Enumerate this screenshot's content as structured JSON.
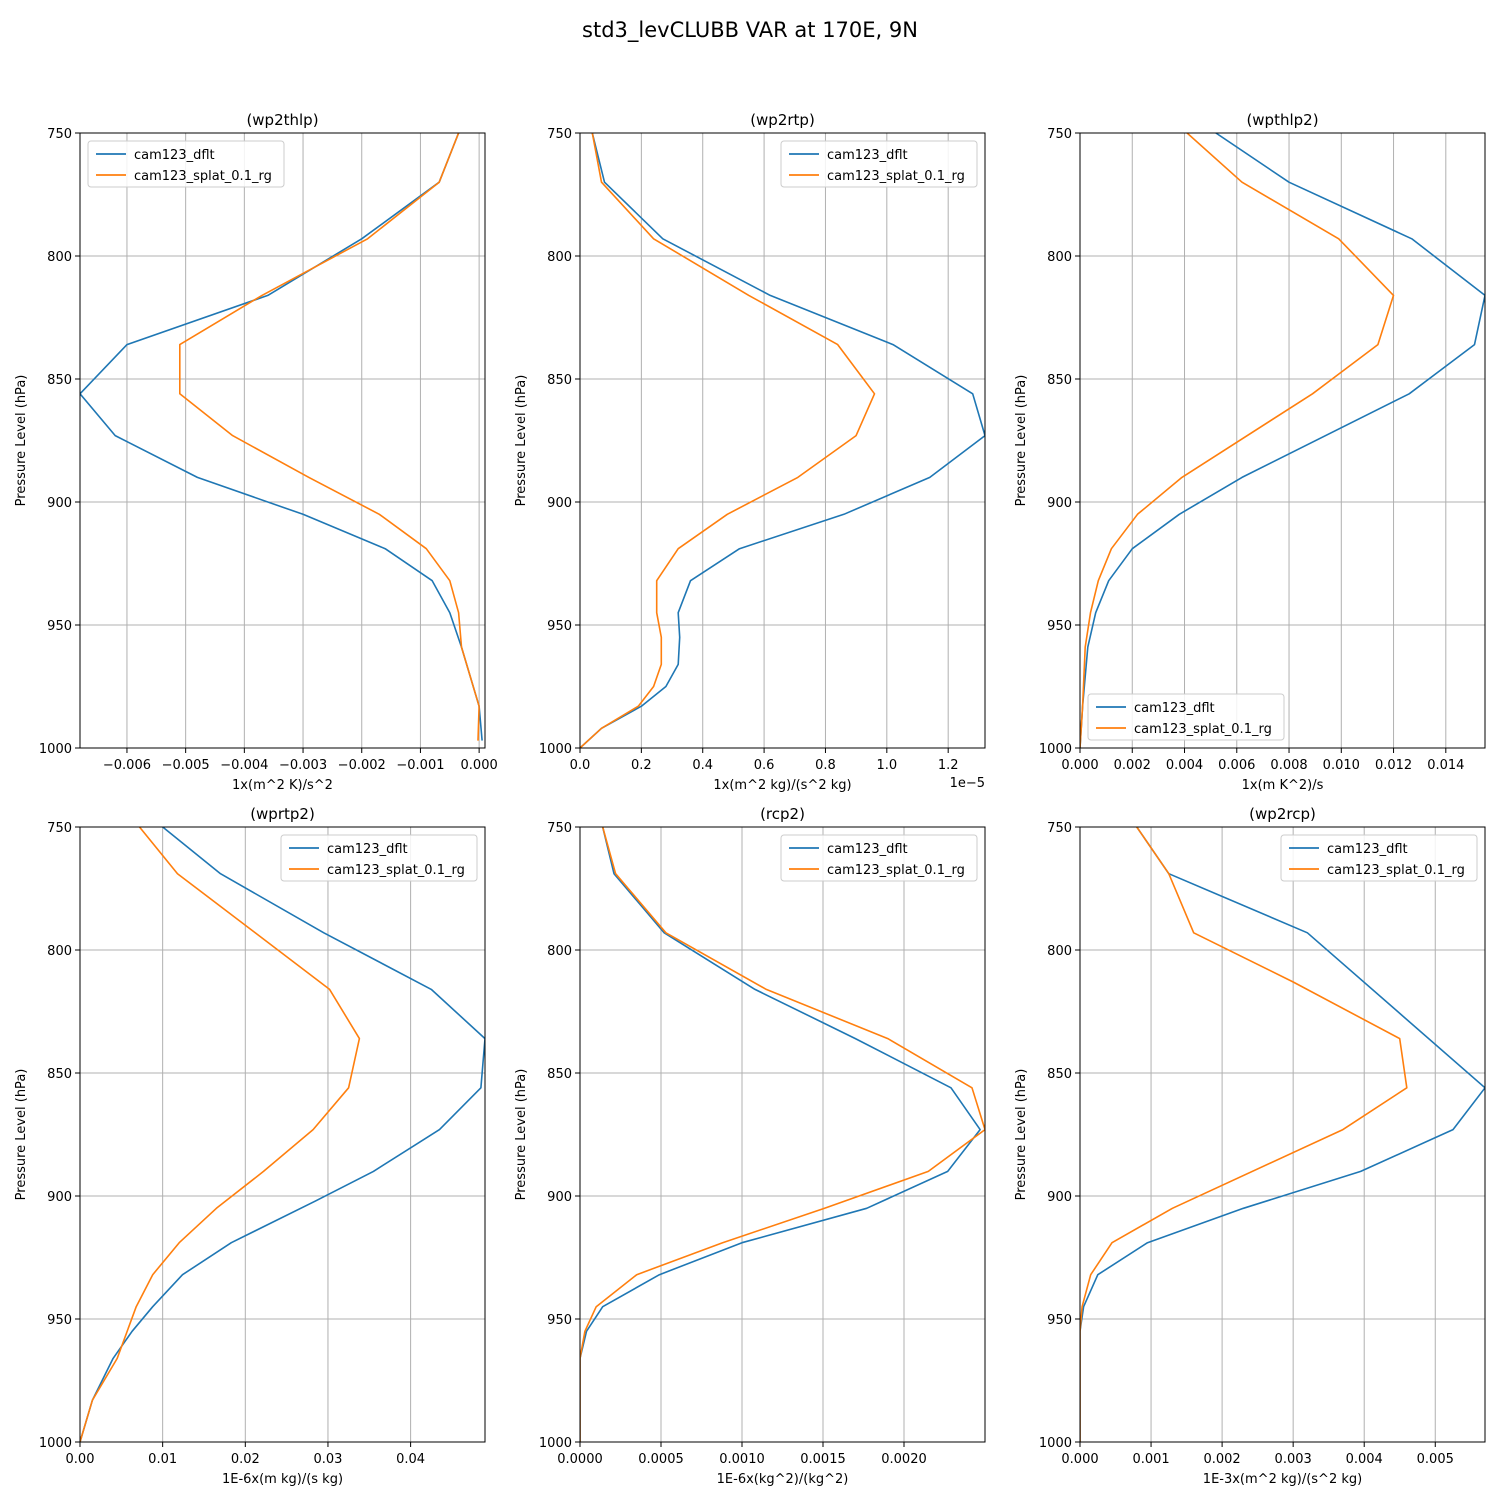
{
  "figure_title": "std3_levCLUBB VAR at 170E, 9N",
  "colors": {
    "dflt": "#1f77b4",
    "splat": "#ff7f0e",
    "grid": "#b0b0b0"
  },
  "chart_data": [
    {
      "type": "line",
      "title": "(wp2thlp)",
      "xlabel": "1x(m^2 K)/s^2",
      "ylabel": "Pressure Level (hPa)",
      "xlim": [
        -0.0068,
        0.0001
      ],
      "ylim": [
        1000,
        750
      ],
      "xticks": [
        -0.006,
        -0.005,
        -0.004,
        -0.003,
        -0.002,
        -0.001,
        0.0
      ],
      "xtick_labels": [
        "−0.006",
        "−0.005",
        "−0.004",
        "−0.003",
        "−0.002",
        "−0.001",
        "0.000"
      ],
      "yticks": [
        750,
        800,
        850,
        900,
        950,
        1000
      ],
      "ytick_labels": [
        "750",
        "800",
        "850",
        "900",
        "950",
        "1000"
      ],
      "offset_label": "",
      "grid": true,
      "legend_position": "upper-left",
      "series": [
        {
          "name": "cam123_dflt",
          "color": "#1f77b4",
          "x": [
            -0.00035,
            -0.00068,
            -0.002,
            -0.0036,
            -0.006,
            -0.0068,
            -0.0062,
            -0.0048,
            -0.003,
            -0.0016,
            -0.0008,
            -0.0005,
            -0.0003,
            0.0,
            5e-05
          ],
          "y": [
            750,
            770,
            793,
            816,
            836,
            856,
            873,
            890,
            905,
            919,
            932,
            945,
            959,
            983,
            997
          ]
        },
        {
          "name": "cam123_splat_0.1_rg",
          "color": "#ff7f0e",
          "x": [
            -0.00035,
            -0.00068,
            -0.0019,
            -0.0037,
            -0.0051,
            -0.0051,
            -0.0042,
            -0.0029,
            -0.0017,
            -0.0009,
            -0.0005,
            -0.00035,
            -0.0003,
            0.0,
            -2e-05
          ],
          "y": [
            750,
            770,
            793,
            816,
            836,
            856,
            873,
            890,
            905,
            919,
            932,
            945,
            959,
            983,
            997
          ]
        }
      ]
    },
    {
      "type": "line",
      "title": "(wp2rtp)",
      "xlabel": "1x(m^2 kg)/(s^2 kg)",
      "ylabel": "Pressure Level (hPa)",
      "xlim": [
        0,
        1.32
      ],
      "ylim": [
        1000,
        750
      ],
      "xticks": [
        0.0,
        0.2,
        0.4,
        0.6,
        0.8,
        1.0,
        1.2
      ],
      "xtick_labels": [
        "0.0",
        "0.2",
        "0.4",
        "0.6",
        "0.8",
        "1.0",
        "1.2"
      ],
      "yticks": [
        750,
        800,
        850,
        900,
        950,
        1000
      ],
      "ytick_labels": [
        "750",
        "800",
        "850",
        "900",
        "950",
        "1000"
      ],
      "offset_label": "1e−5",
      "grid": true,
      "legend_position": "upper-right",
      "series": [
        {
          "name": "cam123_dflt",
          "color": "#1f77b4",
          "x": [
            0.04,
            0.08,
            0.27,
            0.62,
            1.02,
            1.28,
            1.32,
            1.14,
            0.86,
            0.52,
            0.36,
            0.32,
            0.325,
            0.32,
            0.28,
            0.2,
            0.07,
            0.0
          ],
          "y": [
            750,
            770,
            793,
            816,
            836,
            856,
            873,
            890,
            905,
            919,
            932,
            945,
            955,
            966,
            975,
            983,
            992,
            1000
          ]
        },
        {
          "name": "cam123_splat_0.1_rg",
          "color": "#ff7f0e",
          "x": [
            0.04,
            0.07,
            0.24,
            0.55,
            0.84,
            0.96,
            0.9,
            0.71,
            0.48,
            0.32,
            0.25,
            0.25,
            0.265,
            0.265,
            0.24,
            0.19,
            0.07,
            0.0
          ],
          "y": [
            750,
            770,
            793,
            816,
            836,
            856,
            873,
            890,
            905,
            919,
            932,
            945,
            955,
            966,
            975,
            983,
            992,
            1000
          ]
        }
      ]
    },
    {
      "type": "line",
      "title": "(wpthlp2)",
      "xlabel": "1x(m K^2)/s",
      "ylabel": "Pressure Level (hPa)",
      "xlim": [
        0,
        0.0155
      ],
      "ylim": [
        1000,
        750
      ],
      "xticks": [
        0.0,
        0.002,
        0.004,
        0.006,
        0.008,
        0.01,
        0.012,
        0.014
      ],
      "xtick_labels": [
        "0.000",
        "0.002",
        "0.004",
        "0.006",
        "0.008",
        "0.010",
        "0.012",
        "0.014"
      ],
      "yticks": [
        750,
        800,
        850,
        900,
        950,
        1000
      ],
      "ytick_labels": [
        "750",
        "800",
        "850",
        "900",
        "950",
        "1000"
      ],
      "offset_label": "",
      "grid": true,
      "legend_position": "lower-left",
      "series": [
        {
          "name": "cam123_dflt",
          "color": "#1f77b4",
          "x": [
            0.0052,
            0.008,
            0.0127,
            0.0155,
            0.0151,
            0.0126,
            0.0062,
            0.0038,
            0.002,
            0.0011,
            0.0006,
            0.0003,
            0.0001,
            0.0
          ],
          "y": [
            750,
            770,
            793,
            816,
            836,
            856,
            890,
            905,
            919,
            932,
            945,
            959,
            983,
            1000
          ]
        },
        {
          "name": "cam123_splat_0.1_rg",
          "color": "#ff7f0e",
          "x": [
            0.0041,
            0.0062,
            0.0099,
            0.012,
            0.0114,
            0.0089,
            0.0039,
            0.0022,
            0.0012,
            0.0007,
            0.0004,
            0.0002,
            0.0001,
            0.0
          ],
          "y": [
            750,
            770,
            793,
            816,
            836,
            856,
            890,
            905,
            919,
            932,
            945,
            959,
            983,
            1000
          ]
        }
      ]
    },
    {
      "type": "line",
      "title": "(wprtp2)",
      "xlabel": "1E-6x(m kg)/(s kg)",
      "ylabel": "Pressure Level (hPa)",
      "xlim": [
        0,
        0.049
      ],
      "ylim": [
        1000,
        750
      ],
      "xticks": [
        0.0,
        0.01,
        0.02,
        0.03,
        0.04
      ],
      "xtick_labels": [
        "0.00",
        "0.01",
        "0.02",
        "0.03",
        "0.04"
      ],
      "yticks": [
        750,
        800,
        850,
        900,
        950,
        1000
      ],
      "ytick_labels": [
        "750",
        "800",
        "850",
        "900",
        "950",
        "1000"
      ],
      "offset_label": "",
      "grid": true,
      "legend_position": "upper-right",
      "series": [
        {
          "name": "cam123_dflt",
          "color": "#1f77b4",
          "x": [
            0.01,
            0.017,
            0.0295,
            0.0425,
            0.049,
            0.0485,
            0.0435,
            0.0355,
            0.0285,
            0.0183,
            0.0124,
            0.0088,
            0.0063,
            0.004,
            0.0015,
            0.0
          ],
          "y": [
            750,
            769,
            793,
            816,
            836,
            856,
            873,
            890,
            902,
            919,
            932,
            945,
            955,
            966,
            983,
            1000
          ]
        },
        {
          "name": "cam123_splat_0.1_rg",
          "color": "#ff7f0e",
          "x": [
            0.0072,
            0.0118,
            0.0212,
            0.0302,
            0.0338,
            0.0325,
            0.0282,
            0.0222,
            0.0165,
            0.012,
            0.0088,
            0.0068,
            0.0045,
            0.0015,
            0.0
          ],
          "y": [
            750,
            769,
            793,
            816,
            836,
            856,
            873,
            890,
            905,
            919,
            932,
            945,
            966,
            983,
            1000
          ]
        }
      ]
    },
    {
      "type": "line",
      "title": "(rcp2)",
      "xlabel": "1E-6x(kg^2)/(kg^2)",
      "ylabel": "Pressure Level (hPa)",
      "xlim": [
        0,
        0.0025
      ],
      "ylim": [
        1000,
        750
      ],
      "xticks": [
        0.0,
        0.0005,
        0.001,
        0.0015,
        0.002
      ],
      "xtick_labels": [
        "0.0000",
        "0.0005",
        "0.0010",
        "0.0015",
        "0.0020"
      ],
      "yticks": [
        750,
        800,
        850,
        900,
        950,
        1000
      ],
      "ytick_labels": [
        "750",
        "800",
        "850",
        "900",
        "950",
        "1000"
      ],
      "offset_label": "",
      "grid": true,
      "legend_position": "upper-right",
      "series": [
        {
          "name": "cam123_dflt",
          "color": "#1f77b4",
          "x": [
            0.00014,
            0.00021,
            0.00052,
            0.00108,
            0.0017,
            0.00229,
            0.00247,
            0.00227,
            0.00177,
            0.001,
            0.00049,
            0.00014,
            4e-05,
            0.0,
            0.0
          ],
          "y": [
            750,
            769,
            793,
            816,
            836,
            856,
            873,
            890,
            905,
            919,
            932,
            945,
            955,
            966,
            1000
          ]
        },
        {
          "name": "cam123_splat_0.1_rg",
          "color": "#ff7f0e",
          "x": [
            0.00014,
            0.00022,
            0.00053,
            0.00115,
            0.0019,
            0.00242,
            0.0025,
            0.00215,
            0.00151,
            0.00088,
            0.00035,
            0.0001,
            3e-05,
            0.0,
            0.0
          ],
          "y": [
            750,
            769,
            793,
            816,
            836,
            856,
            873,
            890,
            905,
            919,
            932,
            945,
            955,
            966,
            1000
          ]
        }
      ]
    },
    {
      "type": "line",
      "title": "(wp2rcp)",
      "xlabel": "1E-3x(m^2 kg)/(s^2 kg)",
      "ylabel": "Pressure Level (hPa)",
      "xlim": [
        0,
        0.0057
      ],
      "ylim": [
        1000,
        750
      ],
      "xticks": [
        0.0,
        0.001,
        0.002,
        0.003,
        0.004,
        0.005
      ],
      "xtick_labels": [
        "0.000",
        "0.001",
        "0.002",
        "0.003",
        "0.004",
        "0.005"
      ],
      "yticks": [
        750,
        800,
        850,
        900,
        950,
        1000
      ],
      "ytick_labels": [
        "750",
        "800",
        "850",
        "900",
        "950",
        "1000"
      ],
      "offset_label": "",
      "grid": true,
      "legend_position": "upper-right",
      "series": [
        {
          "name": "cam123_dflt",
          "color": "#1f77b4",
          "x": [
            0.0008,
            0.00125,
            0.0032,
            0.0057,
            0.00525,
            0.00395,
            0.0023,
            0.00095,
            0.00025,
            5e-05,
            0.0,
            0.0
          ],
          "y": [
            750,
            769,
            793,
            856,
            873,
            890,
            905,
            919,
            932,
            945,
            955,
            1000
          ]
        },
        {
          "name": "cam123_splat_0.1_rg",
          "color": "#ff7f0e",
          "x": [
            0.0008,
            0.00125,
            0.0016,
            0.003,
            0.0045,
            0.0046,
            0.0037,
            0.0013,
            0.00045,
            0.00015,
            3e-05,
            0.0,
            0.0
          ],
          "y": [
            750,
            769,
            793,
            813,
            836,
            856,
            873,
            905,
            919,
            932,
            945,
            955,
            1000
          ]
        }
      ]
    }
  ]
}
